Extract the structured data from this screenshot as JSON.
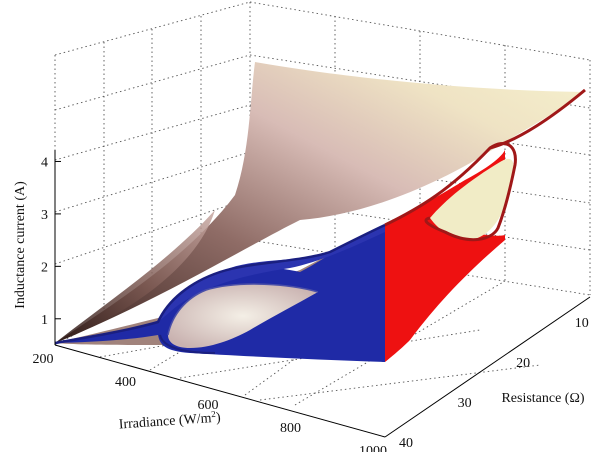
{
  "chart_data": {
    "type": "surface",
    "title": "",
    "axes": {
      "x": {
        "label": "Irradiance (W/m",
        "label_sup": "2",
        "label_end": ")",
        "range": [
          200,
          1000
        ],
        "ticks": [
          "200",
          "400",
          "600",
          "800",
          "1000"
        ]
      },
      "y": {
        "label": "Resistance (Ω)",
        "range": [
          5,
          40
        ],
        "ticks": [
          "10",
          "20",
          "30",
          "40"
        ]
      },
      "z": {
        "label": "Inductance current (A)",
        "range": [
          0.5,
          4.6
        ],
        "ticks": [
          "1",
          "2",
          "3",
          "4"
        ]
      }
    },
    "grid": true,
    "regions": [
      {
        "name": "",
        "color": "#1f2aa6"
      },
      {
        "name": "",
        "color": "#ee1111"
      }
    ],
    "colors": {
      "surface_light": "#f3efc6",
      "surface_mid": "#d4b3b3",
      "surface_dark": "#5a3a34",
      "blue_region": "#1f2aa6",
      "red_region": "#ee1111",
      "boundary_red": "#a01818"
    }
  }
}
